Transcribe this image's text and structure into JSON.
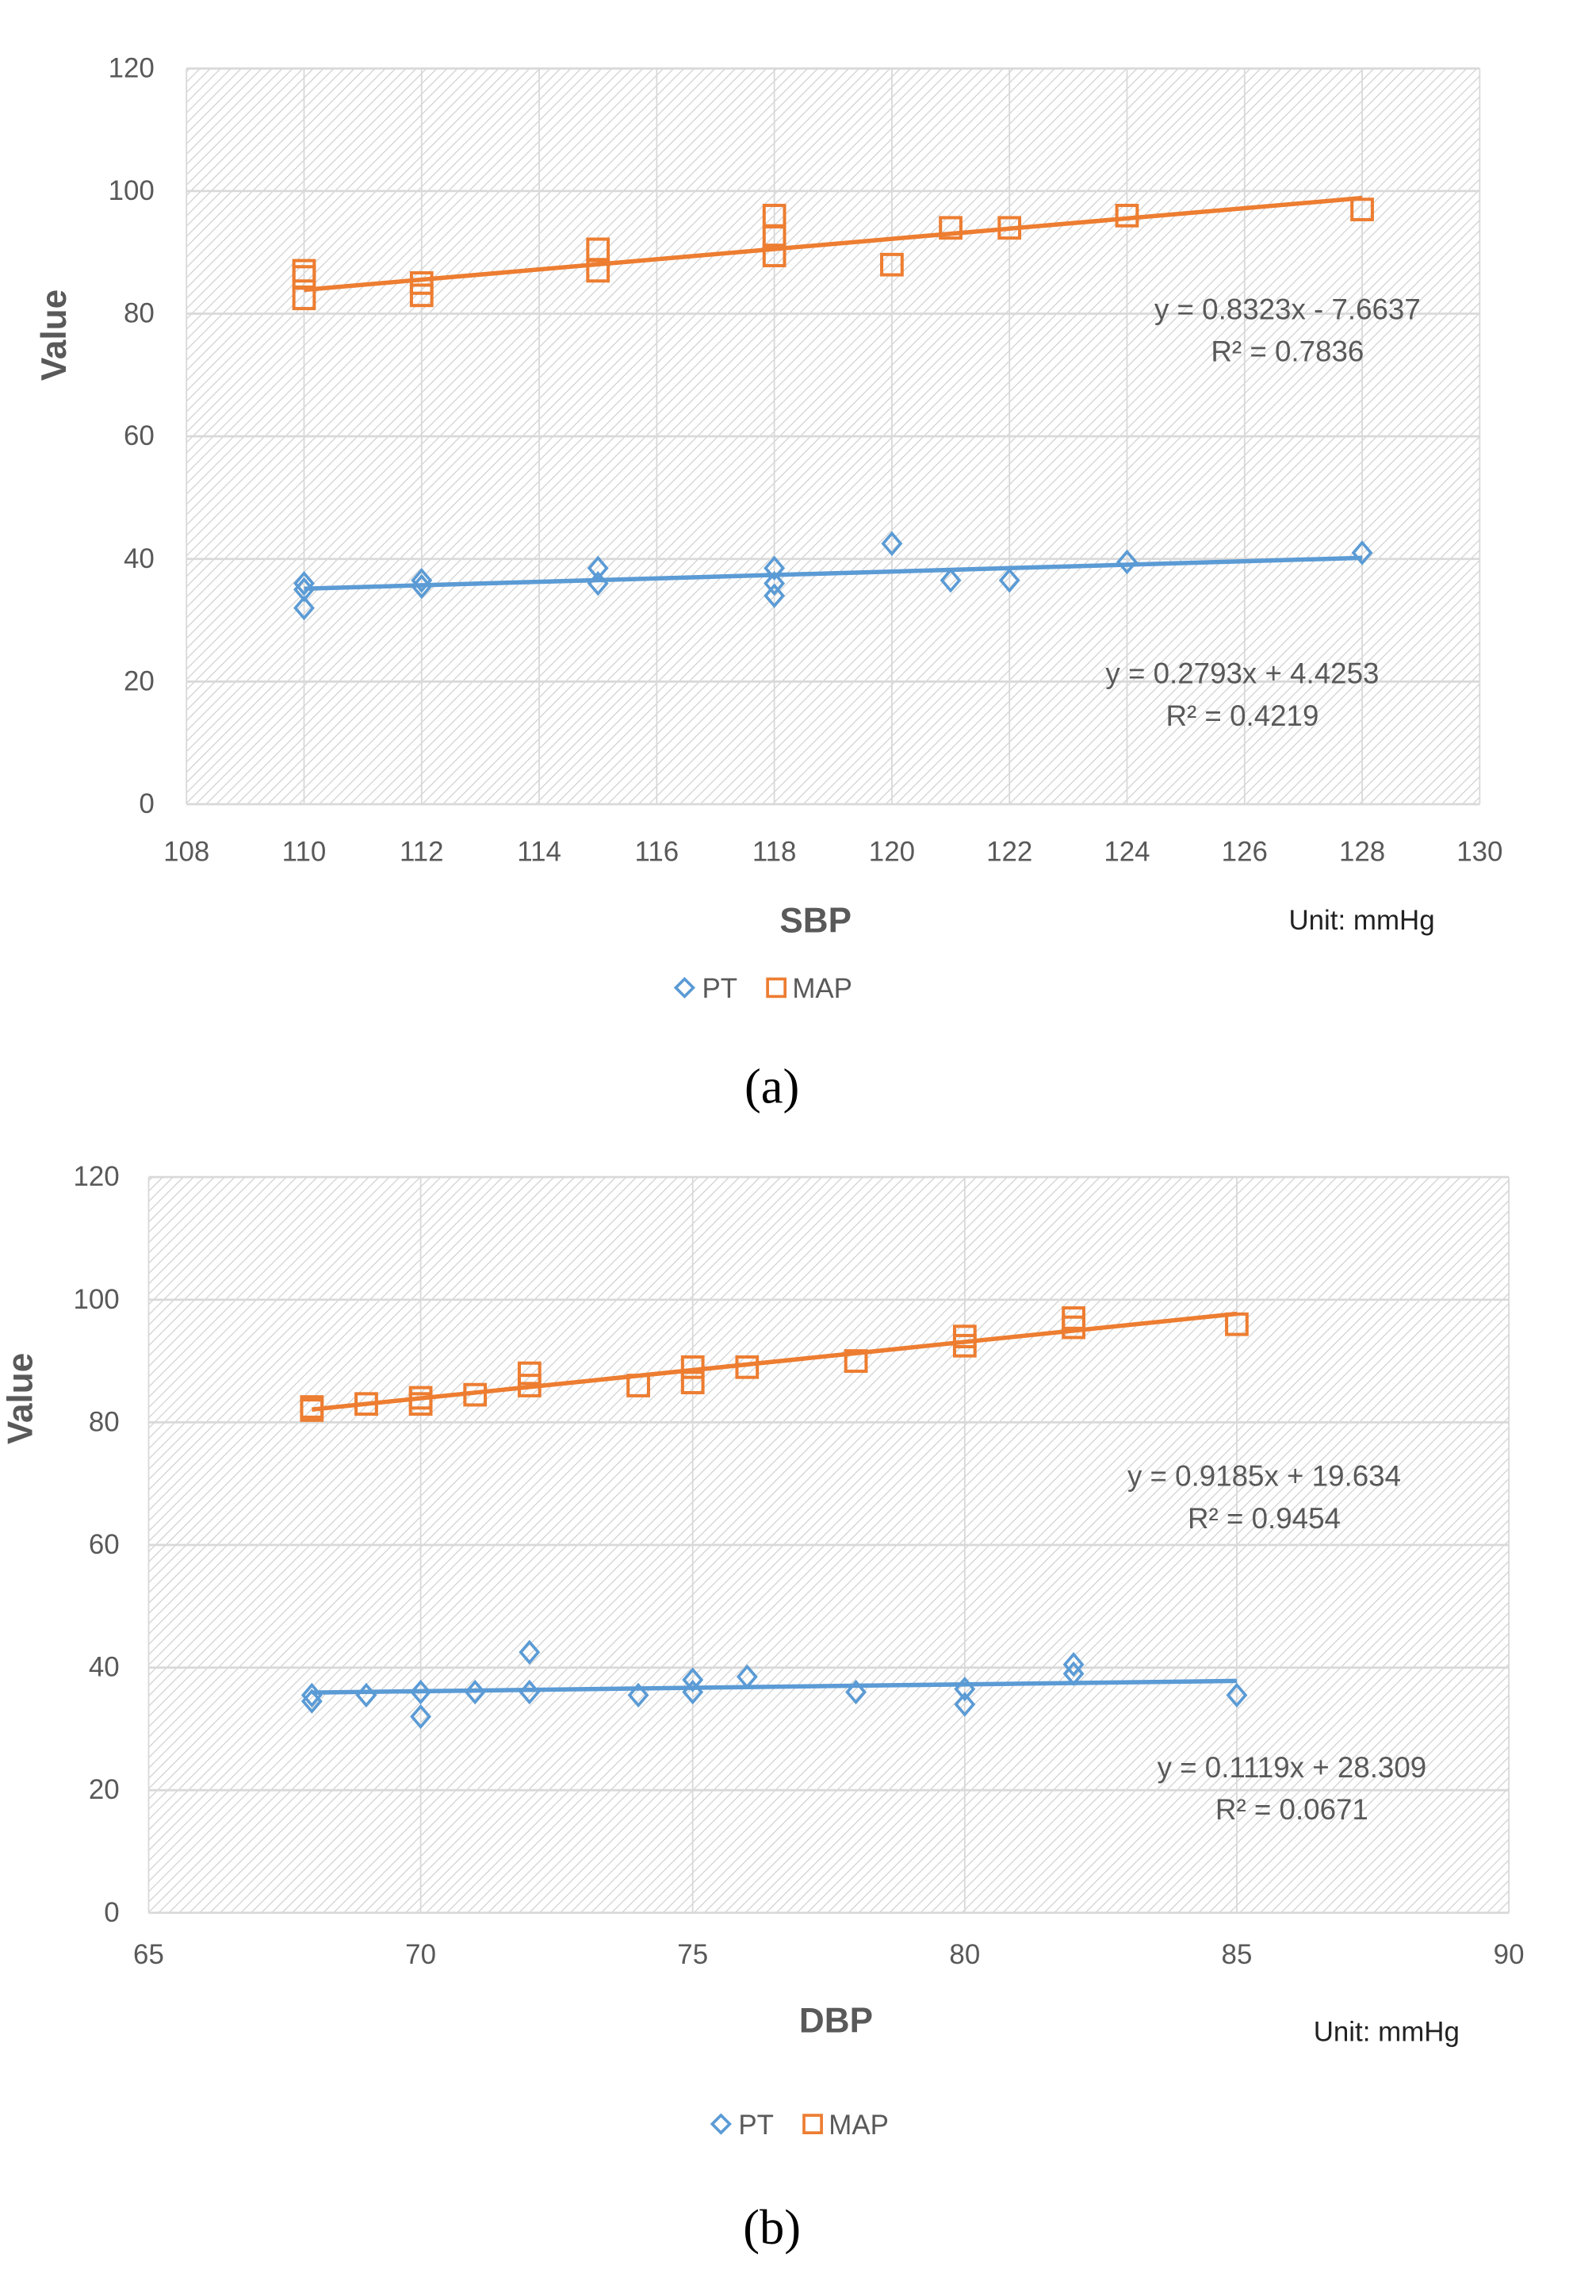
{
  "colors": {
    "pt": "#5B9BD5",
    "map": "#ED7D31",
    "grid": "#D9D9D9"
  },
  "chart_data": [
    {
      "type": "scatter",
      "panel_label": "(a)",
      "xlabel": "SBP",
      "ylabel": "Value",
      "unit_note": "Unit: mmHg",
      "xlim": [
        108,
        130
      ],
      "ylim": [
        0,
        120
      ],
      "xticks": [
        108,
        110,
        112,
        114,
        116,
        118,
        120,
        122,
        124,
        126,
        128,
        130
      ],
      "yticks": [
        0,
        20,
        40,
        60,
        80,
        100,
        120
      ],
      "grid": true,
      "legend_position": "bottom",
      "legend": [
        "PT",
        "MAP"
      ],
      "series": [
        {
          "name": "PT",
          "marker": "diamond",
          "points": [
            [
              110,
              36
            ],
            [
              110,
              35
            ],
            [
              110,
              32
            ],
            [
              112,
              36.5
            ],
            [
              112,
              35.5
            ],
            [
              115,
              38.5
            ],
            [
              115,
              36
            ],
            [
              118,
              38.5
            ],
            [
              118,
              36
            ],
            [
              118,
              34
            ],
            [
              120,
              42.5
            ],
            [
              121,
              36.5
            ],
            [
              122,
              36.5
            ],
            [
              124,
              39.5
            ],
            [
              128,
              41
            ]
          ],
          "trend": {
            "slope": 0.2793,
            "intercept": 4.4253,
            "equation": "y = 0.2793x + 4.4253",
            "r2": "R² = 0.4219"
          }
        },
        {
          "name": "MAP",
          "marker": "square",
          "points": [
            [
              110,
              87
            ],
            [
              110,
              86
            ],
            [
              110,
              82.5
            ],
            [
              112,
              85
            ],
            [
              112,
              83
            ],
            [
              115,
              90.5
            ],
            [
              115,
              87
            ],
            [
              118,
              96
            ],
            [
              118,
              92.5
            ],
            [
              118,
              89.5
            ],
            [
              120,
              88
            ],
            [
              121,
              94
            ],
            [
              122,
              94
            ],
            [
              124,
              96
            ],
            [
              128,
              97
            ]
          ],
          "trend": {
            "slope": 0.8323,
            "intercept": -7.6637,
            "equation": "y = 0.8323x - 7.6637",
            "r2": "R² = 0.7836"
          }
        }
      ]
    },
    {
      "type": "scatter",
      "panel_label": "(b)",
      "xlabel": "DBP",
      "ylabel": "Value",
      "unit_note": "Unit: mmHg",
      "xlim": [
        65,
        90
      ],
      "ylim": [
        0,
        120
      ],
      "xticks": [
        65,
        70,
        75,
        80,
        85,
        90
      ],
      "yticks": [
        0,
        20,
        40,
        60,
        80,
        100,
        120
      ],
      "grid": true,
      "legend_position": "bottom",
      "legend": [
        "PT",
        "MAP"
      ],
      "series": [
        {
          "name": "PT",
          "marker": "diamond",
          "points": [
            [
              68,
              35.5
            ],
            [
              68,
              34.5
            ],
            [
              69,
              35.5
            ],
            [
              70,
              36
            ],
            [
              70,
              32
            ],
            [
              71,
              36
            ],
            [
              72,
              42.5
            ],
            [
              72,
              36
            ],
            [
              74,
              35.5
            ],
            [
              75,
              38
            ],
            [
              75,
              36
            ],
            [
              76,
              38.5
            ],
            [
              78,
              36
            ],
            [
              80,
              36.5
            ],
            [
              80,
              34
            ],
            [
              82,
              40.5
            ],
            [
              82,
              39
            ],
            [
              85,
              35.5
            ]
          ],
          "trend": {
            "slope": 0.1119,
            "intercept": 28.309,
            "equation": "y = 0.1119x + 28.309",
            "r2": "R² = 0.0671"
          }
        },
        {
          "name": "MAP",
          "marker": "square",
          "points": [
            [
              68,
              82.5
            ],
            [
              68,
              82
            ],
            [
              69,
              83
            ],
            [
              70,
              84
            ],
            [
              70,
              83
            ],
            [
              71,
              84.5
            ],
            [
              72,
              88
            ],
            [
              72,
              86
            ],
            [
              74,
              86
            ],
            [
              75,
              89
            ],
            [
              75,
              86.5
            ],
            [
              76,
              89
            ],
            [
              78,
              90
            ],
            [
              80,
              94
            ],
            [
              80,
              92.5
            ],
            [
              82,
              97
            ],
            [
              82,
              95.5
            ],
            [
              85,
              96
            ]
          ],
          "trend": {
            "slope": 0.9185,
            "intercept": 19.634,
            "equation": "y = 0.9185x + 19.634",
            "r2": "R² = 0.9454"
          }
        }
      ]
    }
  ]
}
